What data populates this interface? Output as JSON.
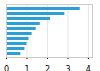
{
  "chart_data": {
    "type": "bar",
    "orientation": "horizontal",
    "categories": [
      null,
      null,
      null,
      null,
      null,
      null,
      null,
      null,
      null,
      null
    ],
    "values": [
      3.6,
      2.85,
      2.15,
      1.65,
      1.45,
      1.25,
      1.1,
      1.0,
      0.9,
      0.7
    ],
    "color": "#2b9fd6",
    "xlim": [
      0,
      4.2
    ],
    "xticks": [
      0,
      1,
      2,
      3,
      4
    ],
    "grid": true,
    "tick_labels": "x"
  }
}
